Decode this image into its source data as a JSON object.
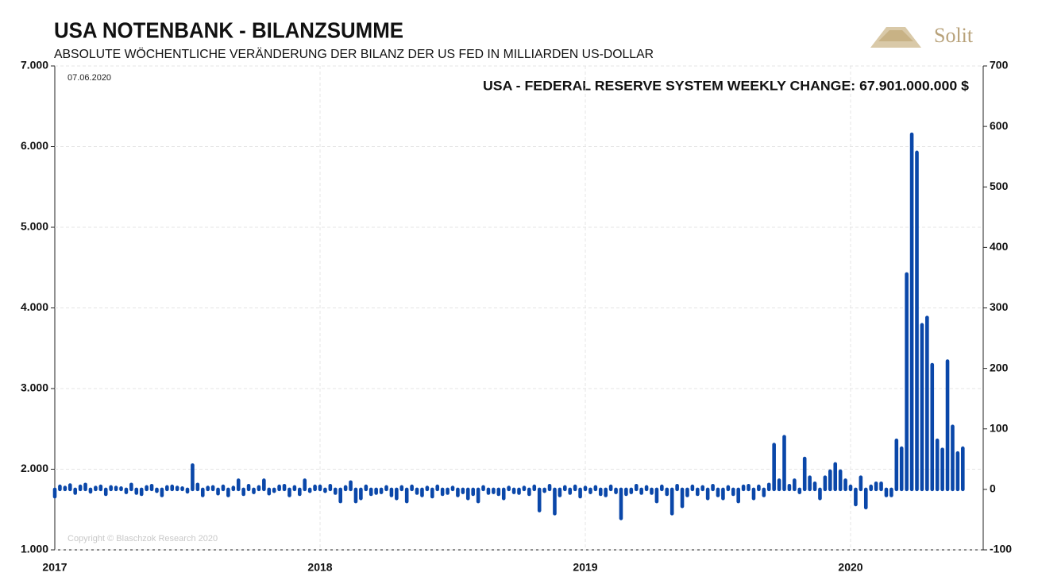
{
  "chart_data": {
    "type": "bar",
    "title": "USA NOTENBANK - BILANZSUMME",
    "subtitle": "ABSOLUTE WÖCHENTLICHE VERÄNDERUNG DER BILANZ DER US FED IN MILLIARDEN US-DOLLAR",
    "date_label": "07.06.2020",
    "annotation": "USA - FEDERAL RESERVE SYSTEM WEEKLY CHANGE: 67.901.000.000 $",
    "copyright": "Copyright © Blaschzok Research 2020",
    "logo": "Solit",
    "categories": [
      "2017",
      null,
      null,
      null,
      null,
      null,
      null,
      null,
      null,
      null,
      null,
      null,
      null,
      null,
      null,
      null,
      null,
      null,
      null,
      null,
      null,
      null,
      null,
      null,
      null,
      null,
      null,
      null,
      null,
      null,
      null,
      null,
      null,
      null,
      null,
      null,
      null,
      null,
      null,
      null,
      null,
      null,
      null,
      null,
      null,
      null,
      null,
      null,
      null,
      null,
      null,
      null,
      "2018",
      null,
      null,
      null,
      null,
      null,
      null,
      null,
      null,
      null,
      null,
      null,
      null,
      null,
      null,
      null,
      null,
      null,
      null,
      null,
      null,
      null,
      null,
      null,
      null,
      null,
      null,
      null,
      null,
      null,
      null,
      null,
      null,
      null,
      null,
      null,
      null,
      null,
      null,
      null,
      null,
      null,
      null,
      null,
      null,
      null,
      null,
      null,
      null,
      null,
      null,
      null,
      "2019",
      null,
      null,
      null,
      null,
      null,
      null,
      null,
      null,
      null,
      null,
      null,
      null,
      null,
      null,
      null,
      null,
      null,
      null,
      null,
      null,
      null,
      null,
      null,
      null,
      null,
      null,
      null,
      null,
      null,
      null,
      null,
      null,
      null,
      null,
      null,
      null,
      null,
      null,
      null,
      null,
      null,
      null,
      null,
      null,
      null,
      null,
      null,
      null,
      null,
      null,
      null,
      "2020",
      null,
      null,
      null,
      null,
      null,
      null,
      null,
      null,
      null,
      null,
      null,
      null,
      null,
      null,
      null,
      null,
      null,
      null,
      null,
      null,
      null,
      null
    ],
    "series": [
      {
        "name": "USA - Federal Reserve System Weekly Change",
        "color": "#0a47a9",
        "axis": "y2",
        "values": [
          -12,
          5,
          3,
          7,
          -6,
          5,
          8,
          -4,
          3,
          5,
          -8,
          4,
          3,
          2,
          -5,
          8,
          -6,
          -8,
          4,
          6,
          -3,
          -10,
          4,
          5,
          3,
          2,
          -4,
          40,
          8,
          -10,
          3,
          4,
          -7,
          5,
          -10,
          3,
          15,
          -8,
          6,
          -5,
          4,
          15,
          -7,
          -3,
          5,
          6,
          -10,
          4,
          -8,
          15,
          -3,
          5,
          5,
          -3,
          6,
          -6,
          -20,
          4,
          12,
          -20,
          -15,
          5,
          -8,
          -6,
          -5,
          4,
          -10,
          -15,
          4,
          -20,
          5,
          -6,
          -10,
          3,
          -12,
          5,
          -8,
          -6,
          3,
          -10,
          -5,
          -15,
          -8,
          -20,
          4,
          -6,
          -5,
          -8,
          -15,
          3,
          -5,
          -6,
          3,
          -8,
          5,
          -35,
          -3,
          6,
          -40,
          -10,
          4,
          -6,
          5,
          -12,
          3,
          -5,
          4,
          -8,
          -10,
          5,
          -5,
          -48,
          -8,
          -5,
          6,
          -6,
          4,
          -6,
          -20,
          5,
          -8,
          -40,
          6,
          -28,
          -10,
          5,
          -8,
          4,
          -15,
          6,
          -10,
          -15,
          4,
          -8,
          -20,
          5,
          6,
          -15,
          5,
          -10,
          8,
          74,
          15,
          87,
          6,
          15,
          -5,
          51,
          20,
          10,
          -15,
          20,
          30,
          42,
          30,
          15,
          5,
          -25,
          20,
          -30,
          5,
          10,
          10,
          -10,
          -10,
          81,
          68,
          356,
          587,
          557,
          272,
          284,
          206,
          81,
          66,
          212,
          104,
          60,
          68
        ]
      }
    ],
    "ylim": [
      1000,
      7000
    ],
    "yticks": [
      {
        "value": 1000,
        "label": "1.000"
      },
      {
        "value": 2000,
        "label": "2.000"
      },
      {
        "value": 3000,
        "label": "3.000"
      },
      {
        "value": 4000,
        "label": "4.000"
      },
      {
        "value": 5000,
        "label": "5.000"
      },
      {
        "value": 6000,
        "label": "6.000"
      },
      {
        "value": 7000,
        "label": "7.000"
      }
    ],
    "y2lim": [
      -100,
      700
    ],
    "y2ticks": [
      -100,
      0,
      100,
      200,
      300,
      400,
      500,
      600,
      700
    ],
    "grid": true
  }
}
